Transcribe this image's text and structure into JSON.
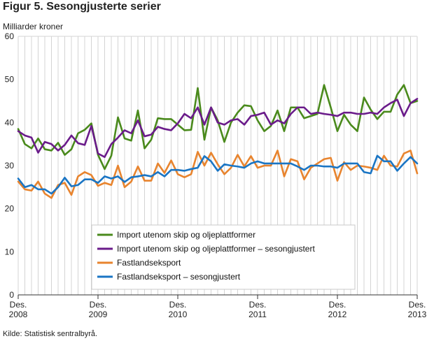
{
  "figure": {
    "title": "Figur 5. Sesongjusterte serier",
    "source": "Kilde: Statistisk sentralbyrå."
  },
  "chart_data": {
    "type": "line",
    "ylabel": "Milliarder kroner",
    "ylim": [
      0,
      60
    ],
    "yticks": [
      0,
      10,
      20,
      30,
      40,
      50,
      60
    ],
    "x_start": "2008-12",
    "n_points": 61,
    "xticks": [
      {
        "index": 0,
        "line1": "Des.",
        "line2": "2008"
      },
      {
        "index": 12,
        "line1": "Des.",
        "line2": "2009"
      },
      {
        "index": 24,
        "line1": "Des.",
        "line2": "2010"
      },
      {
        "index": 36,
        "line1": "Des.",
        "line2": "2011"
      },
      {
        "index": 48,
        "line1": "Des.",
        "line2": "2012"
      },
      {
        "index": 60,
        "line1": "Des.",
        "line2": "2013"
      }
    ],
    "grid": "vertical-monthly",
    "legend_position": "bottom-center",
    "series": [
      {
        "name": "Import utenom skip og oljeplattformer",
        "color": "#4a8a1c",
        "values": [
          38.5,
          35.0,
          34.0,
          36.3,
          33.8,
          33.5,
          35.3,
          32.5,
          33.8,
          37.5,
          38.3,
          39.8,
          32.5,
          29.2,
          32.3,
          41.2,
          36.3,
          35.8,
          42.8,
          34.0,
          36.0,
          41.0,
          40.8,
          40.8,
          39.5,
          38.2,
          38.3,
          48.0,
          36.0,
          43.5,
          40.5,
          35.5,
          40.0,
          42.3,
          44.0,
          43.8,
          40.5,
          38.0,
          39.2,
          42.8,
          38.0,
          43.5,
          43.5,
          41.0,
          41.5,
          42.0,
          48.7,
          43.5,
          38.0,
          41.8,
          39.5,
          38.0,
          45.8,
          43.0,
          40.8,
          42.5,
          42.5,
          46.5,
          48.7,
          44.5,
          45.0
        ]
      },
      {
        "name": "Import utenom skip og oljeplattformer – sesongjustert",
        "color": "#6a1b8a",
        "values": [
          38.0,
          37.0,
          36.5,
          33.0,
          35.5,
          35.0,
          33.5,
          34.8,
          37.0,
          35.2,
          34.8,
          39.2,
          32.8,
          32.0,
          35.0,
          36.5,
          38.2,
          37.5,
          40.5,
          36.8,
          37.2,
          39.0,
          38.5,
          38.2,
          39.8,
          42.0,
          41.0,
          43.5,
          39.5,
          43.5,
          40.0,
          39.5,
          40.5,
          40.8,
          39.5,
          41.5,
          41.8,
          42.3,
          39.5,
          40.5,
          39.8,
          42.0,
          43.5,
          43.5,
          42.0,
          42.3,
          42.0,
          41.8,
          41.5,
          42.3,
          42.3,
          42.0,
          42.0,
          42.3,
          42.0,
          43.5,
          44.5,
          45.3,
          41.5,
          44.5,
          45.5
        ]
      },
      {
        "name": "Fastlandseksport",
        "color": "#e8842e",
        "values": [
          26.3,
          24.5,
          24.2,
          26.3,
          23.5,
          22.5,
          25.5,
          26.0,
          23.2,
          27.5,
          28.5,
          27.8,
          25.3,
          26.0,
          25.5,
          30.0,
          25.0,
          26.3,
          29.8,
          26.5,
          26.5,
          30.5,
          28.3,
          31.2,
          28.0,
          27.3,
          28.0,
          33.2,
          30.0,
          33.0,
          30.3,
          28.0,
          29.5,
          32.5,
          29.8,
          32.2,
          29.5,
          30.0,
          30.0,
          33.5,
          27.5,
          31.5,
          31.0,
          26.8,
          29.5,
          30.5,
          31.5,
          31.8,
          26.5,
          30.8,
          29.0,
          30.0,
          29.8,
          29.5,
          29.0,
          32.3,
          30.0,
          29.8,
          32.8,
          33.5,
          28.2
        ]
      },
      {
        "name": "Fastlandseksport – sesongjustert",
        "color": "#1a75c4",
        "values": [
          27.0,
          25.0,
          25.5,
          24.5,
          24.5,
          23.5,
          25.0,
          27.2,
          25.2,
          25.5,
          26.8,
          26.8,
          26.0,
          27.5,
          27.0,
          27.5,
          26.2,
          27.3,
          27.5,
          27.8,
          27.5,
          28.5,
          27.5,
          29.0,
          29.0,
          28.8,
          29.2,
          29.5,
          32.2,
          31.0,
          28.8,
          30.3,
          30.0,
          29.8,
          29.5,
          30.5,
          31.0,
          30.5,
          30.5,
          30.5,
          30.5,
          30.5,
          29.8,
          29.0,
          30.0,
          30.0,
          29.8,
          29.8,
          29.5,
          30.5,
          30.5,
          30.5,
          28.5,
          28.2,
          32.3,
          31.0,
          31.0,
          28.8,
          30.5,
          32.0,
          30.5
        ]
      }
    ]
  }
}
